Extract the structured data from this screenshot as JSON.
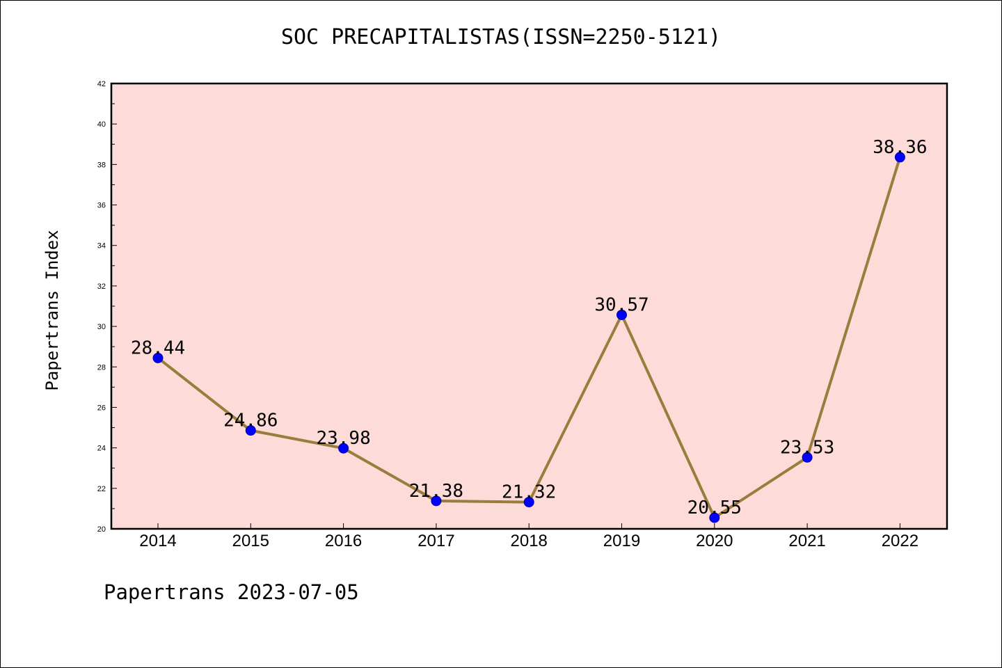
{
  "chart_data": {
    "type": "line",
    "title": "SOC PRECAPITALISTAS(ISSN=2250-5121)",
    "xlabel": "",
    "ylabel": "Papertrans Index",
    "categories": [
      "2014",
      "2015",
      "2016",
      "2017",
      "2018",
      "2019",
      "2020",
      "2021",
      "2022"
    ],
    "series": [
      {
        "values": [
          28.44,
          24.86,
          23.98,
          21.38,
          21.32,
          30.57,
          20.55,
          23.53,
          38.36
        ],
        "labels": [
          "28.44",
          "24.86",
          "23.98",
          "21.38",
          "21.32",
          "30.57",
          "20.55",
          "23.53",
          "38.36"
        ]
      }
    ],
    "ylim": [
      20,
      42
    ],
    "yticks": [
      "20",
      "22",
      "24",
      "26",
      "28",
      "30",
      "32",
      "34",
      "36",
      "38",
      "40",
      "42"
    ],
    "grid": false,
    "legend": "none",
    "colors": {
      "plot_background": "#fddbd8",
      "line": "#9a7d3c",
      "marker": "#0000ff"
    }
  },
  "footer": {
    "note": "Papertrans 2023-07-05"
  }
}
